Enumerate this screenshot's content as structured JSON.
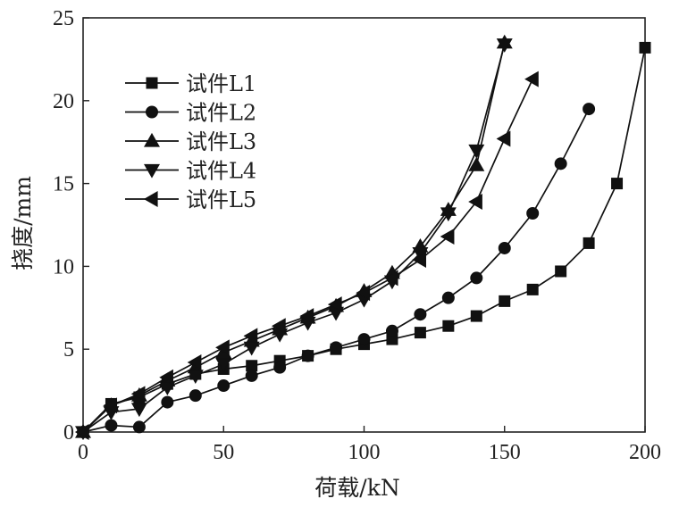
{
  "chart_data": {
    "type": "line",
    "xlabel": "荷载/kN",
    "ylabel": "挠度/mm",
    "xlim": [
      0,
      200
    ],
    "ylim": [
      0,
      25
    ],
    "xticks": [
      0,
      50,
      100,
      150,
      200
    ],
    "yticks": [
      0,
      5,
      10,
      15,
      20,
      25
    ],
    "grid": false,
    "legend_position": "upper-left",
    "series": [
      {
        "name": "试件L1",
        "marker": "square",
        "x": [
          0,
          10,
          20,
          30,
          40,
          50,
          60,
          70,
          80,
          90,
          100,
          110,
          120,
          130,
          140,
          150,
          160,
          170,
          180,
          190,
          200
        ],
        "y": [
          0,
          1.7,
          2.1,
          2.9,
          3.5,
          3.8,
          4.0,
          4.3,
          4.6,
          5.0,
          5.3,
          5.6,
          6.0,
          6.4,
          7.0,
          7.9,
          8.6,
          9.7,
          11.4,
          15.0,
          23.2
        ]
      },
      {
        "name": "试件L2",
        "marker": "circle",
        "x": [
          0,
          10,
          20,
          30,
          40,
          50,
          60,
          70,
          80,
          90,
          100,
          110,
          120,
          130,
          140,
          150,
          160,
          170,
          180
        ],
        "y": [
          0,
          0.4,
          0.3,
          1.8,
          2.2,
          2.8,
          3.4,
          3.9,
          4.6,
          5.1,
          5.6,
          6.1,
          7.1,
          8.1,
          9.3,
          11.1,
          13.2,
          16.2,
          19.5
        ]
      },
      {
        "name": "试件L3",
        "marker": "triangle-up",
        "x": [
          0,
          10,
          20,
          30,
          40,
          50,
          60,
          70,
          80,
          90,
          100,
          110,
          120,
          130,
          140,
          150
        ],
        "y": [
          0,
          1.6,
          2.2,
          3.1,
          3.9,
          4.8,
          5.5,
          6.2,
          6.9,
          7.6,
          8.5,
          9.6,
          11.2,
          13.4,
          16.1,
          23.5
        ]
      },
      {
        "name": "试件L4",
        "marker": "triangle-down",
        "x": [
          0,
          10,
          20,
          30,
          40,
          50,
          60,
          70,
          80,
          90,
          100,
          110,
          120,
          130,
          140,
          150
        ],
        "y": [
          0,
          1.2,
          1.4,
          2.7,
          3.4,
          4.1,
          5.1,
          5.9,
          6.6,
          7.2,
          8.0,
          9.1,
          10.8,
          13.2,
          17.0,
          23.4
        ]
      },
      {
        "name": "试件L5",
        "marker": "triangle-left",
        "x": [
          0,
          10,
          20,
          30,
          40,
          50,
          60,
          70,
          80,
          90,
          100,
          110,
          120,
          130,
          140,
          150,
          160
        ],
        "y": [
          0,
          1.6,
          2.3,
          3.3,
          4.2,
          5.1,
          5.8,
          6.4,
          7.0,
          7.7,
          8.4,
          9.3,
          10.4,
          11.8,
          13.9,
          17.7,
          21.3
        ]
      }
    ]
  }
}
